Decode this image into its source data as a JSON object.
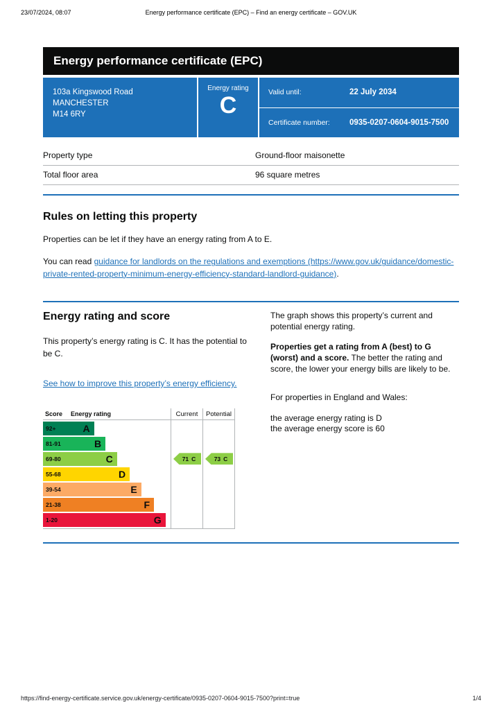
{
  "print_header": {
    "datetime": "23/07/2024, 08:07",
    "title": "Energy performance certificate (EPC) – Find an energy certificate – GOV.UK"
  },
  "banner": {
    "title": "Energy performance certificate (EPC)"
  },
  "colors": {
    "govuk_blue": "#1d70b8",
    "banner_black": "#0b0c0c",
    "border_grey": "#b1b4b6"
  },
  "summary": {
    "address_line1": "103a Kingswood Road",
    "address_line2": "MANCHESTER",
    "address_line3": "M14 6RY",
    "energy_rating_label": "Energy rating",
    "energy_rating": "C",
    "valid_until_label": "Valid until:",
    "valid_until": "22 July 2034",
    "certificate_number_label": "Certificate number:",
    "certificate_number": "0935-0207-0604-9015-7500"
  },
  "property_details": {
    "rows": [
      {
        "label": "Property type",
        "value": "Ground-floor maisonette"
      },
      {
        "label": "Total floor area",
        "value": "96 square metres"
      }
    ]
  },
  "rules": {
    "heading": "Rules on letting this property",
    "paragraph1": "Properties can be let if they have an energy rating from A to E.",
    "paragraph2_prefix": "You can read ",
    "link_text": "guidance for landlords on the regulations and exemptions",
    "link_url_text": "(https://www.gov.uk/guidance/domestic-private-rented-property-minimum-energy-efficiency-standard-landlord-guidance)",
    "paragraph2_suffix": "."
  },
  "rating_section": {
    "heading": "Energy rating and score",
    "paragraph1": "This property’s energy rating is C. It has the potential to be C.",
    "improve_link": "See how to improve this property’s energy efficiency.",
    "right_para1": "The graph shows this property’s current and potential energy rating.",
    "right_para2_bold": "Properties get a rating from A (best) to G (worst) and a score.",
    "right_para2_rest": " The better the rating and score, the lower your energy bills are likely to be.",
    "right_para3": "For properties in England and Wales:",
    "avg_rating_line": "the average energy rating is D",
    "avg_score_line": "the average energy score is 60"
  },
  "chart_data": {
    "type": "bar",
    "title": "Energy rating and score bands",
    "headers": [
      "Score",
      "Energy rating",
      "Current",
      "Potential"
    ],
    "bands": [
      {
        "score": "92+",
        "letter": "A",
        "color": "#008054",
        "width_pct": 40
      },
      {
        "score": "81-91",
        "letter": "B",
        "color": "#19b459",
        "width_pct": 49
      },
      {
        "score": "69-80",
        "letter": "C",
        "color": "#8dce46",
        "width_pct": 58
      },
      {
        "score": "55-68",
        "letter": "D",
        "color": "#ffd500",
        "width_pct": 68
      },
      {
        "score": "39-54",
        "letter": "E",
        "color": "#fcaa65",
        "width_pct": 77
      },
      {
        "score": "21-38",
        "letter": "F",
        "color": "#ef8023",
        "width_pct": 87
      },
      {
        "score": "1-20",
        "letter": "G",
        "color": "#e9153b",
        "width_pct": 96
      }
    ],
    "current": {
      "value": 71,
      "letter": "C",
      "color": "#8dce46"
    },
    "potential": {
      "value": 73,
      "letter": "C",
      "color": "#8dce46"
    }
  },
  "footer": {
    "url": "https://find-energy-certificate.service.gov.uk/energy-certificate/0935-0207-0604-9015-7500?print=true",
    "page": "1/4"
  }
}
